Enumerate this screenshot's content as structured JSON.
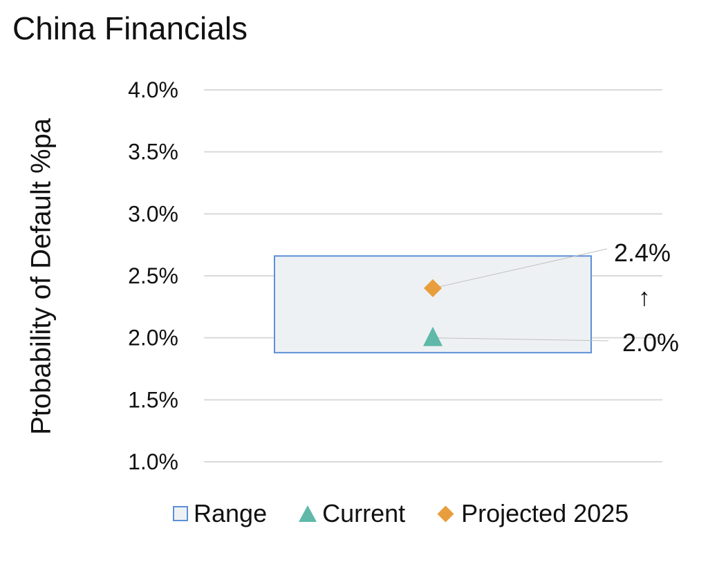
{
  "chart_data": {
    "type": "scatter",
    "title": "China Financials",
    "ylabel": "Ptobability of Default %pa",
    "ylim": [
      1.0,
      4.0
    ],
    "yticks": [
      "4.0%",
      "3.5%",
      "3.0%",
      "2.5%",
      "2.0%",
      "1.5%",
      "1.0%"
    ],
    "ytick_values": [
      4.0,
      3.5,
      3.0,
      2.5,
      2.0,
      1.5,
      1.0
    ],
    "grid": true,
    "legend_position": "bottom",
    "series": [
      {
        "name": "Range",
        "kind": "box",
        "low": 1.88,
        "high": 2.66,
        "color": "#5b8fd6",
        "fill": "#eef1f4"
      },
      {
        "name": "Current",
        "kind": "triangle",
        "value": 2.0,
        "color": "#5fb8a8"
      },
      {
        "name": "Projected 2025",
        "kind": "diamond",
        "value": 2.4,
        "color": "#e89e3c"
      }
    ],
    "annotations": [
      {
        "text": "2.4%",
        "refers_to": "Projected 2025"
      },
      {
        "text": "2.0%",
        "refers_to": "Current"
      },
      {
        "text": "↑",
        "refers_to": "direction"
      }
    ]
  }
}
